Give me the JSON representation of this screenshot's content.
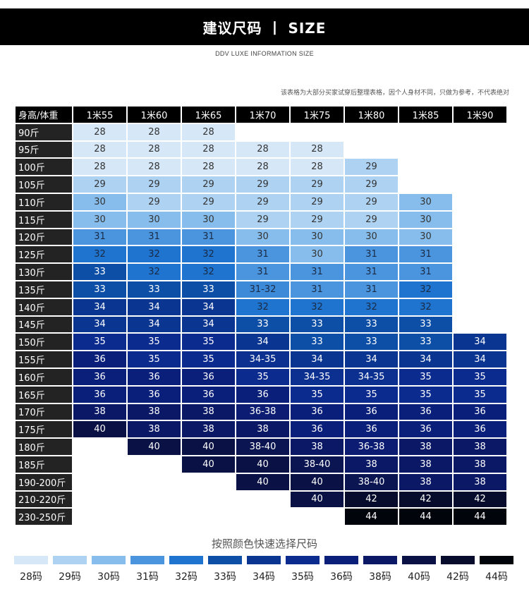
{
  "header": {
    "title": "建议尺码  丨 SIZE",
    "subtitle": "DDV LUXE INFORMATION SIZE",
    "note": "该表格为大部分买家试穿后整理表格，因个人身材不同，只做为参考，不代表绝对"
  },
  "table": {
    "corner": "身高/体重",
    "columns": [
      "1米55",
      "1米60",
      "1米65",
      "1米70",
      "1米75",
      "1米80",
      "1米85",
      "1米90"
    ],
    "rows": [
      {
        "label": "90斤",
        "cells": [
          "28",
          "28",
          "28",
          "",
          "",
          "",
          "",
          ""
        ]
      },
      {
        "label": "95斤",
        "cells": [
          "28",
          "28",
          "28",
          "28",
          "28",
          "",
          "",
          ""
        ]
      },
      {
        "label": "100斤",
        "cells": [
          "28",
          "28",
          "28",
          "28",
          "28",
          "29",
          "",
          ""
        ]
      },
      {
        "label": "105斤",
        "cells": [
          "29",
          "29",
          "29",
          "29",
          "29",
          "29",
          "",
          ""
        ]
      },
      {
        "label": "110斤",
        "cells": [
          "30",
          "29",
          "29",
          "29",
          "29",
          "29",
          "30",
          ""
        ]
      },
      {
        "label": "115斤",
        "cells": [
          "30",
          "30",
          "30",
          "29",
          "29",
          "29",
          "30",
          ""
        ]
      },
      {
        "label": "120斤",
        "cells": [
          "31",
          "31",
          "31",
          "30",
          "30",
          "30",
          "30",
          ""
        ]
      },
      {
        "label": "125斤",
        "cells": [
          "32",
          "32",
          "32",
          "31",
          "30",
          "31",
          "31",
          ""
        ]
      },
      {
        "label": "130斤",
        "cells": [
          "33",
          "32",
          "32",
          "31",
          "31",
          "31",
          "31",
          ""
        ]
      },
      {
        "label": "135斤",
        "cells": [
          "33",
          "33",
          "33",
          "31-32",
          "31",
          "31",
          "32",
          ""
        ]
      },
      {
        "label": "140斤",
        "cells": [
          "34",
          "34",
          "34",
          "32",
          "32",
          "32",
          "32",
          ""
        ]
      },
      {
        "label": "145斤",
        "cells": [
          "34",
          "34",
          "34",
          "33",
          "33",
          "33",
          "33",
          ""
        ]
      },
      {
        "label": "150斤",
        "cells": [
          "35",
          "35",
          "35",
          "34",
          "33",
          "33",
          "33",
          "34"
        ]
      },
      {
        "label": "155斤",
        "cells": [
          "36",
          "35",
          "35",
          "34-35",
          "34",
          "34",
          "34",
          "34"
        ]
      },
      {
        "label": "160斤",
        "cells": [
          "36",
          "36",
          "36",
          "35",
          "34-35",
          "34-35",
          "35",
          "35"
        ]
      },
      {
        "label": "165斤",
        "cells": [
          "36",
          "36",
          "36",
          "36",
          "35",
          "35",
          "35",
          "35"
        ]
      },
      {
        "label": "170斤",
        "cells": [
          "38",
          "38",
          "38",
          "36-38",
          "36",
          "36",
          "36",
          "36"
        ]
      },
      {
        "label": "175斤",
        "cells": [
          "40",
          "38",
          "38",
          "38",
          "36",
          "36",
          "36",
          "36"
        ]
      },
      {
        "label": "180斤",
        "cells": [
          "",
          "40",
          "40",
          "38-40",
          "38",
          "36-38",
          "38",
          "38"
        ]
      },
      {
        "label": "185斤",
        "cells": [
          "",
          "",
          "40",
          "40",
          "38-40",
          "38",
          "38",
          "38"
        ]
      },
      {
        "label": "190-200斤",
        "cells": [
          "",
          "",
          "",
          "40",
          "40",
          "38-40",
          "38",
          "38"
        ]
      },
      {
        "label": "210-220斤",
        "cells": [
          "",
          "",
          "",
          "",
          "40",
          "42",
          "42",
          "42"
        ]
      },
      {
        "label": "230-250斤",
        "cells": [
          "",
          "",
          "",
          "",
          "",
          "44",
          "44",
          "44"
        ]
      }
    ]
  },
  "legend": {
    "title": "按照颜色快速选择尺码",
    "items": [
      {
        "label": "28码",
        "color": "#d6e8f8"
      },
      {
        "label": "29码",
        "color": "#aed2f2"
      },
      {
        "label": "30码",
        "color": "#86bdec"
      },
      {
        "label": "31码",
        "color": "#4a95de"
      },
      {
        "label": "32码",
        "color": "#1f74cf"
      },
      {
        "label": "33码",
        "color": "#0d4ea6"
      },
      {
        "label": "34码",
        "color": "#0a3691"
      },
      {
        "label": "35码",
        "color": "#0c2b8f"
      },
      {
        "label": "36码",
        "color": "#0a1f7a"
      },
      {
        "label": "38码",
        "color": "#0b1866"
      },
      {
        "label": "40码",
        "color": "#0a1245"
      },
      {
        "label": "42码",
        "color": "#070c2c"
      },
      {
        "label": "44码",
        "color": "#02040c"
      }
    ]
  },
  "cell_colors": {
    "28": "#d6e8f8",
    "29": "#aed2f2",
    "30": "#86bdec",
    "31": "#4a95de",
    "32": "#1f74cf",
    "31-32": "#3d8ad8",
    "33": "#0d4ea6",
    "34": "#0a3691",
    "34-35": "#0b3090",
    "35": "#0c2b8f",
    "36": "#0a1f7a",
    "36-38": "#0b1c72",
    "38": "#0b1866",
    "38-40": "#0a1552",
    "40": "#0a1245",
    "42": "#070c2c",
    "44": "#02040c"
  }
}
